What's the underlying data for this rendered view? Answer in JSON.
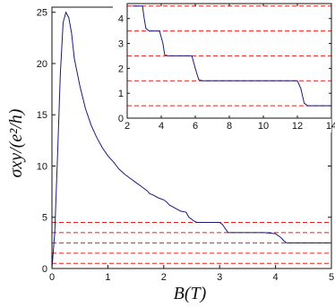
{
  "chart_data": [
    {
      "type": "line",
      "id": "main",
      "xlabel": "B(T)",
      "ylabel": "σxy/(e²/h)",
      "xlim": [
        0,
        5
      ],
      "ylim": [
        0,
        25.5
      ],
      "xticks": [
        0,
        1,
        2,
        3,
        4,
        5
      ],
      "yticks": [
        0,
        5,
        10,
        15,
        20,
        25
      ],
      "grid": false,
      "reference_lines": [
        0.5,
        1.5,
        2.5,
        3.5,
        4.5
      ],
      "series": [
        {
          "x": [
            0.0,
            0.05,
            0.1,
            0.15,
            0.2,
            0.25,
            0.3,
            0.35,
            0.4,
            0.5,
            0.6,
            0.7,
            0.8,
            0.9,
            1.0,
            1.1,
            1.2,
            1.3,
            1.4,
            1.5,
            1.6,
            1.7,
            1.75,
            1.8,
            1.9,
            2.0,
            2.05,
            2.1,
            2.2,
            2.3,
            2.4,
            2.45,
            2.55,
            2.6,
            2.8,
            3.0,
            3.05,
            3.1,
            3.15,
            3.5,
            3.8,
            4.0,
            4.1,
            4.15,
            4.2,
            4.3,
            4.6,
            5.0
          ],
          "y": [
            0.0,
            3.5,
            11.0,
            19.0,
            24.0,
            25.0,
            24.5,
            23.0,
            20.5,
            17.8,
            15.6,
            14.0,
            12.8,
            11.8,
            11.0,
            10.4,
            9.7,
            9.2,
            8.8,
            8.4,
            8.0,
            7.6,
            7.3,
            7.2,
            6.9,
            6.7,
            6.5,
            6.2,
            5.9,
            5.6,
            5.5,
            5.0,
            4.6,
            4.5,
            4.5,
            4.5,
            4.3,
            3.9,
            3.5,
            3.5,
            3.5,
            3.4,
            3.0,
            2.7,
            2.5,
            2.5,
            2.5,
            2.5
          ]
        }
      ]
    },
    {
      "type": "line",
      "id": "inset",
      "xlabel": "",
      "ylabel": "",
      "xlim": [
        2,
        14
      ],
      "ylim": [
        0,
        4.6
      ],
      "xticks": [
        2,
        4,
        6,
        8,
        10,
        12,
        14
      ],
      "yticks": [
        0,
        1,
        2,
        3,
        4
      ],
      "grid": false,
      "reference_lines": [
        0.5,
        1.5,
        2.5,
        3.5,
        4.5
      ],
      "series": [
        {
          "x": [
            2.3,
            2.9,
            3.0,
            3.1,
            3.3,
            3.9,
            4.1,
            4.2,
            4.4,
            5.8,
            6.0,
            6.2,
            6.4,
            12.0,
            12.2,
            12.4,
            12.6,
            14.0
          ],
          "y": [
            4.5,
            4.5,
            4.0,
            3.6,
            3.5,
            3.5,
            3.0,
            2.55,
            2.5,
            2.5,
            2.0,
            1.55,
            1.5,
            1.5,
            1.2,
            0.6,
            0.5,
            0.5
          ]
        }
      ]
    }
  ],
  "colors": {
    "curve": "#1a1a7a",
    "reference": "#e02020",
    "axis": "#111111"
  }
}
